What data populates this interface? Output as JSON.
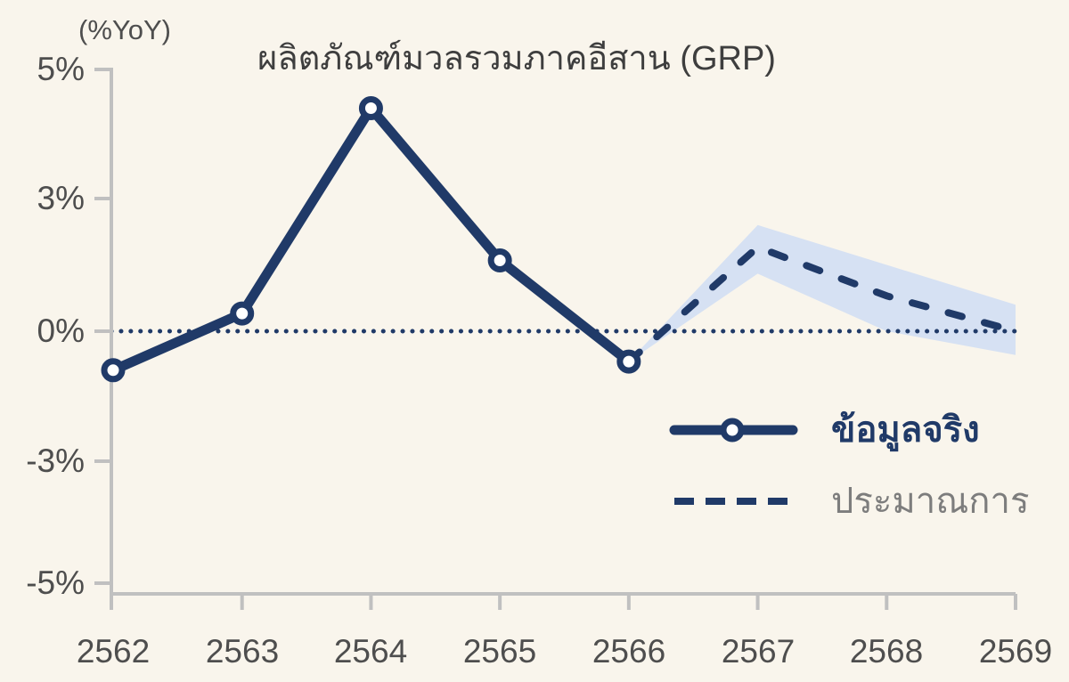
{
  "chart_data": {
    "type": "line",
    "title": "ผลิตภัณฑ์มวลรวมภาคอีสาน (GRP)",
    "unit_label": "(%YoY)",
    "x_categories": [
      "2562",
      "2563",
      "2564",
      "2565",
      "2566",
      "2567",
      "2568",
      "2569"
    ],
    "y_ticks": [
      "5%",
      "3%",
      "0%",
      "-3%",
      "-5%"
    ],
    "y_tick_values": [
      5,
      3,
      0,
      -3,
      -5
    ],
    "ylim": [
      -5,
      5
    ],
    "zero_line": true,
    "grid": false,
    "legend_position": "right-middle",
    "series": [
      {
        "name": "ข้อมูลจริง",
        "style": "solid-with-circle-markers",
        "x": [
          "2562",
          "2563",
          "2564",
          "2565",
          "2566"
        ],
        "values": [
          -0.9,
          0.4,
          4.4,
          1.6,
          -0.7
        ]
      },
      {
        "name": "ประมาณการ",
        "style": "dashed",
        "x": [
          "2566",
          "2567",
          "2568",
          "2569"
        ],
        "values": [
          -0.7,
          1.9,
          0.8,
          0.0
        ]
      }
    ],
    "confidence_band": {
      "x": [
        "2566",
        "2567",
        "2568",
        "2569"
      ],
      "upper": [
        -0.7,
        2.4,
        1.5,
        0.6
      ],
      "lower": [
        -0.7,
        1.3,
        0.0,
        -0.55
      ]
    },
    "legend": [
      {
        "label": "ข้อมูลจริง",
        "style": "solid-circle"
      },
      {
        "label": "ประมาณการ",
        "style": "dashed"
      }
    ]
  },
  "colors": {
    "background": "#F9F5EC",
    "navy": "#203A68",
    "band": "#D6E1F3",
    "axis": "#C0C0C0",
    "text_dark": "#3E3E3E",
    "tick_text": "#4E4E4E",
    "legend_gray": "#7D7D7D",
    "marker_fill": "#FFFFFF"
  }
}
